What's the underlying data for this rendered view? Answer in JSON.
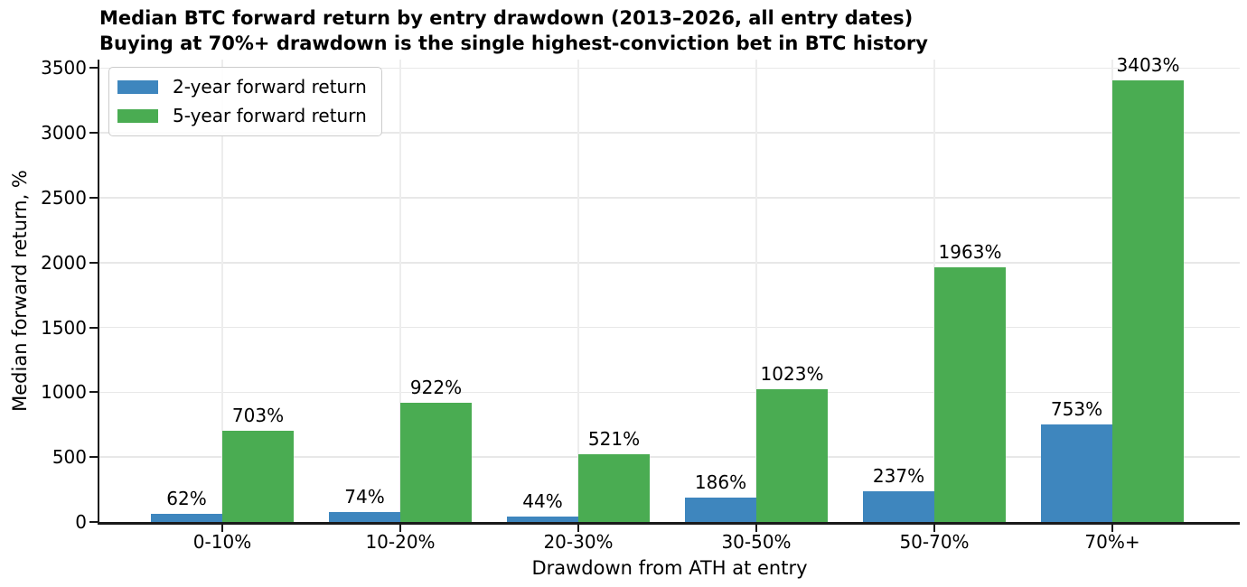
{
  "chart_data": {
    "type": "bar",
    "title": "Median BTC forward return by entry drawdown  (2013–2026, all entry dates)",
    "subtitle": "Buying at 70%+ drawdown is the single highest-conviction bet in BTC history",
    "xlabel": "Drawdown from ATH at entry",
    "ylabel": "Median forward return, %",
    "categories": [
      "0-10%",
      "10-20%",
      "20-30%",
      "30-50%",
      "50-70%",
      "70%+"
    ],
    "series": [
      {
        "name": "2-year forward return",
        "color": "#3e86be",
        "values": [
          62,
          74,
          44,
          186,
          237,
          753
        ],
        "labels": [
          "62%",
          "74%",
          "44%",
          "186%",
          "237%",
          "753%"
        ]
      },
      {
        "name": "5-year forward return",
        "color": "#4aac52",
        "values": [
          703,
          922,
          521,
          1023,
          1963,
          3403
        ],
        "labels": [
          "703%",
          "922%",
          "521%",
          "1023%",
          "1963%",
          "3403%"
        ]
      }
    ],
    "yticks": [
      0,
      500,
      1000,
      1500,
      2000,
      2500,
      3000,
      3500
    ],
    "ylim": [
      0,
      3565
    ],
    "grid": true,
    "legend_position": "upper left"
  }
}
